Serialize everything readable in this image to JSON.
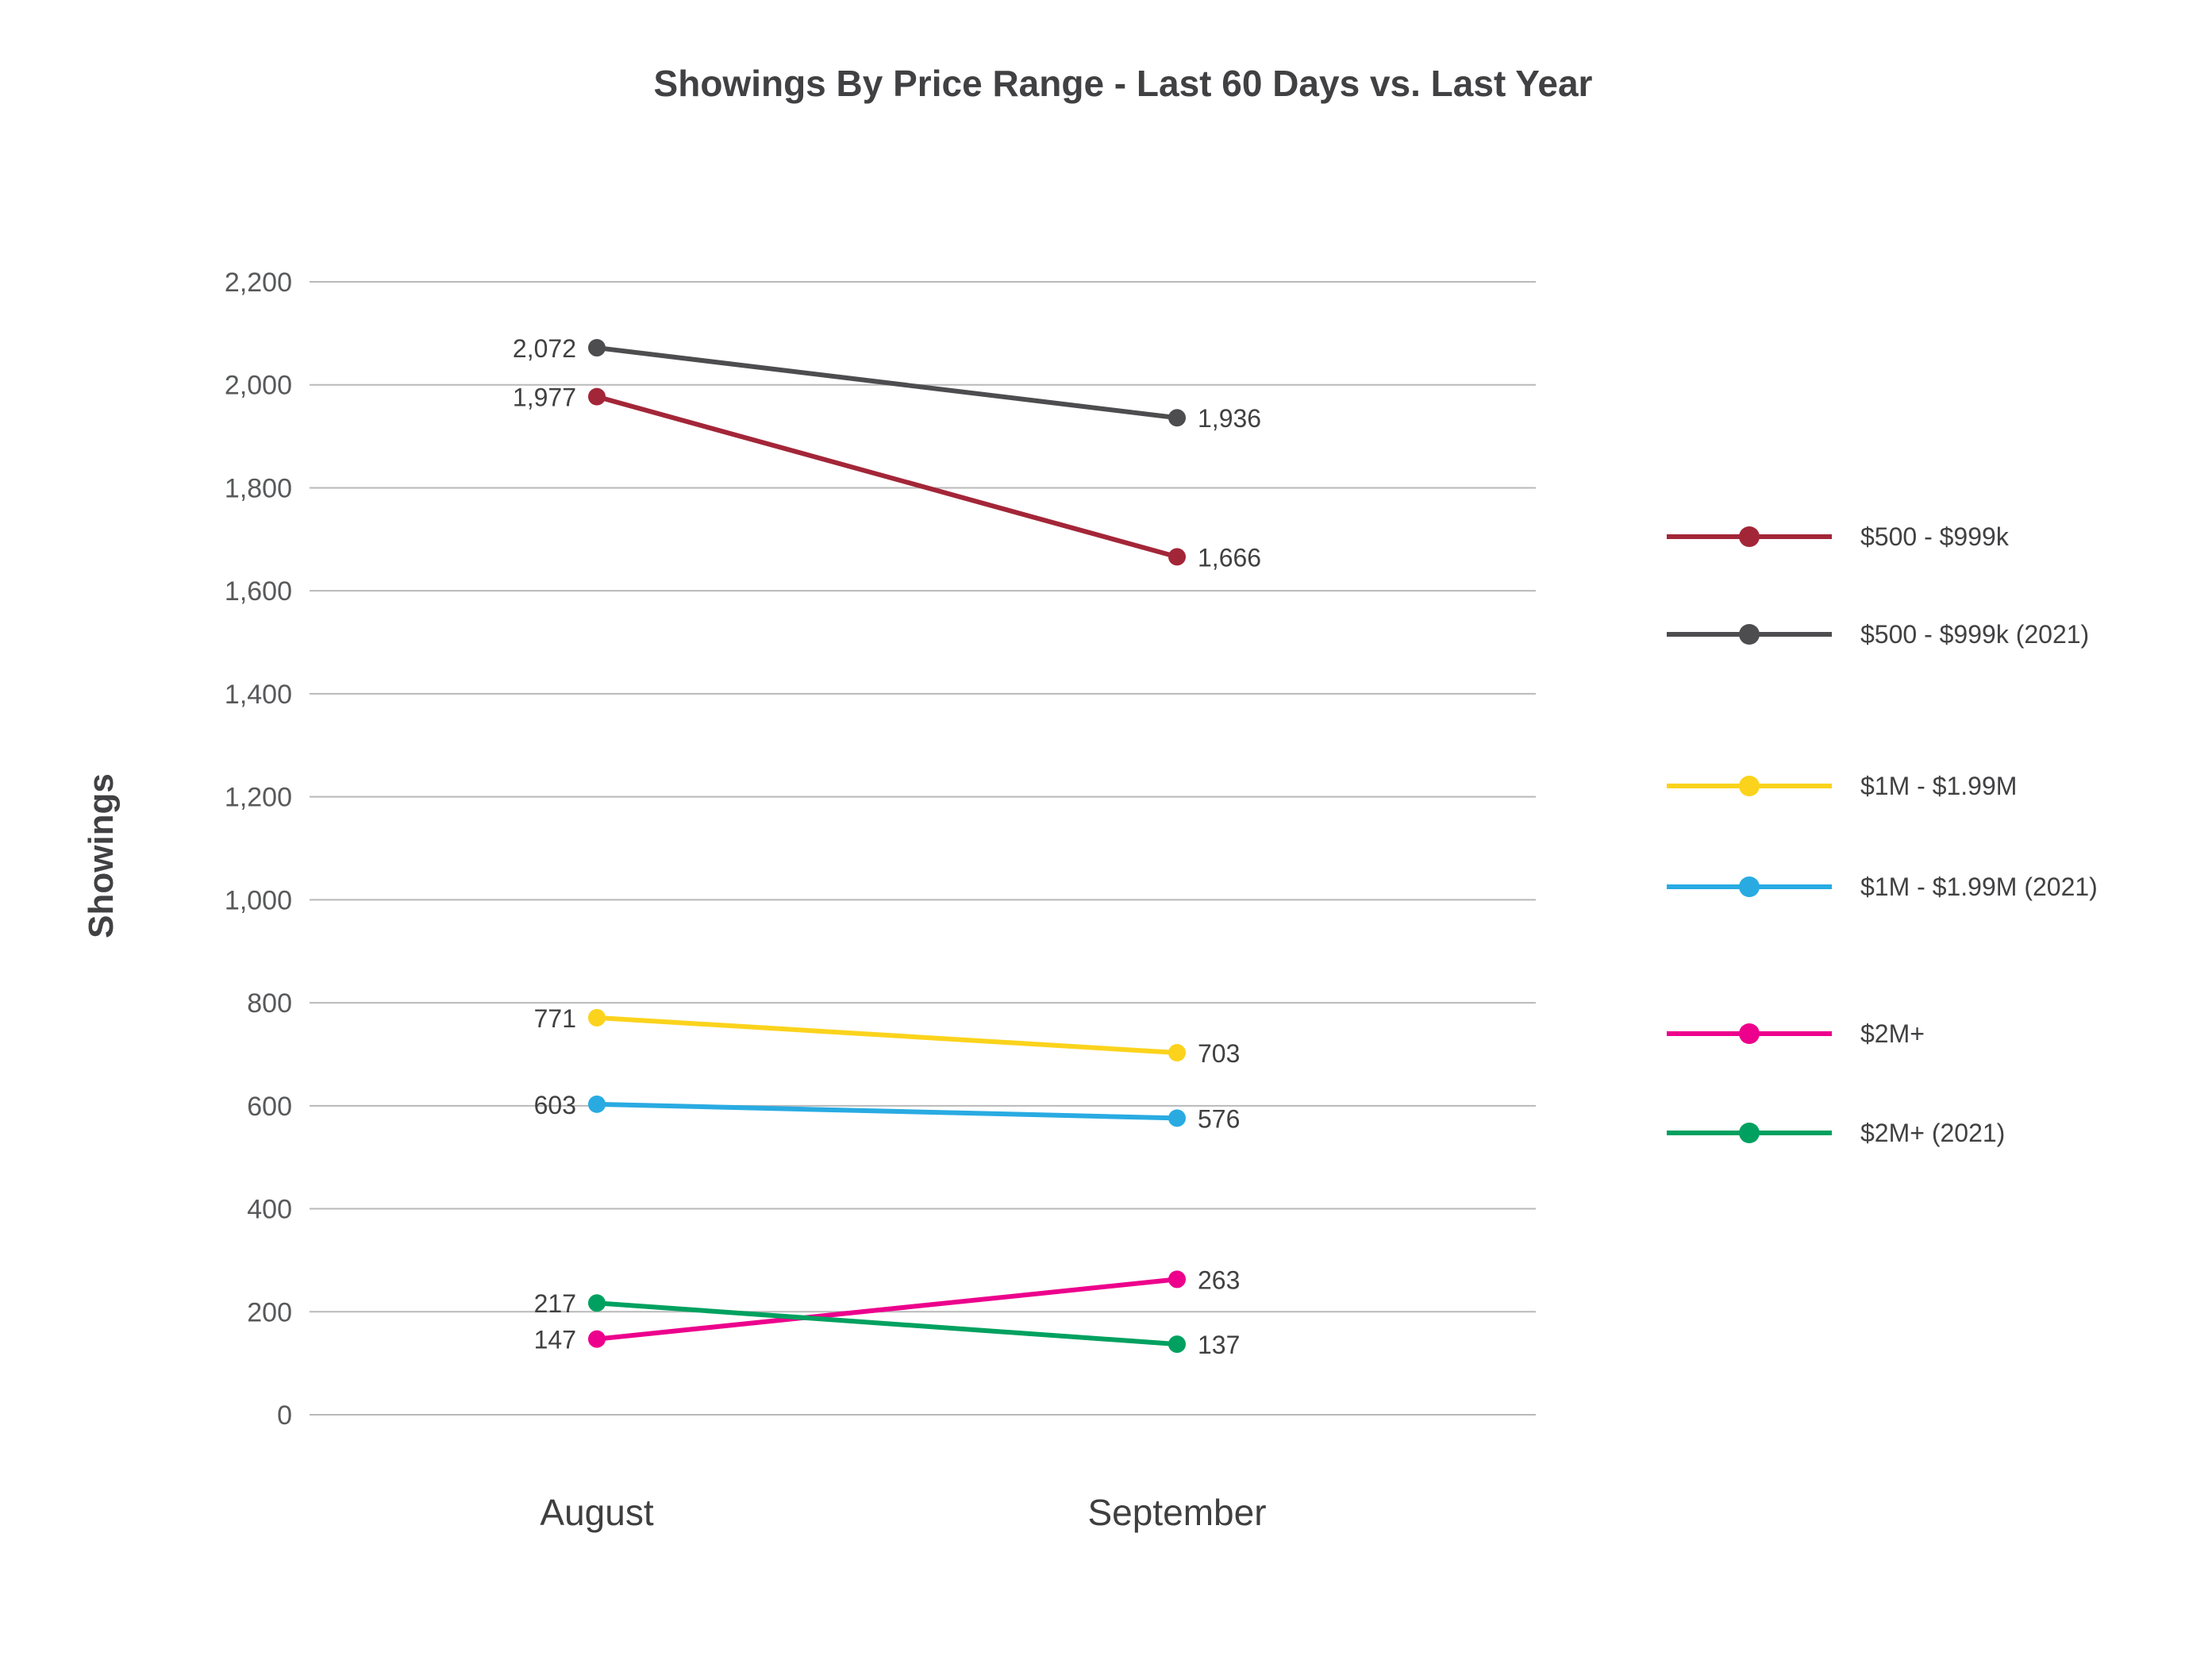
{
  "chart_data": {
    "type": "line",
    "title": "Showings By Price Range - Last 60 Days vs. Last Year",
    "ylabel": "Showings",
    "categories": [
      "August",
      "September"
    ],
    "ylim": [
      0,
      2200
    ],
    "ytick_step": 200,
    "ytick_labels": [
      "0",
      "200",
      "400",
      "600",
      "800",
      "1,000",
      "1,200",
      "1,400",
      "1,600",
      "1,800",
      "2,000",
      "2,200"
    ],
    "grid": true,
    "legend_position": "right",
    "series": [
      {
        "name": "$500 - $999k",
        "color": "#a32638",
        "values": [
          1977,
          1666
        ],
        "labels": [
          "1,977",
          "1,666"
        ]
      },
      {
        "name": "$500 - $999k (2021)",
        "color": "#4d4d4f",
        "values": [
          2072,
          1936
        ],
        "labels": [
          "2,072",
          "1,936"
        ]
      },
      {
        "name": "$1M - $1.99M",
        "color": "#fbd31c",
        "values": [
          771,
          703
        ],
        "labels": [
          "771",
          "703"
        ]
      },
      {
        "name": "$1M - $1.99M (2021)",
        "color": "#29abe2",
        "values": [
          603,
          576
        ],
        "labels": [
          "603",
          "576"
        ]
      },
      {
        "name": "$2M+",
        "color": "#ec008c",
        "values": [
          147,
          263
        ],
        "labels": [
          "147",
          "263"
        ]
      },
      {
        "name": "$2M+ (2021)",
        "color": "#00a160",
        "values": [
          217,
          137
        ],
        "labels": [
          "217",
          "137"
        ]
      }
    ]
  }
}
